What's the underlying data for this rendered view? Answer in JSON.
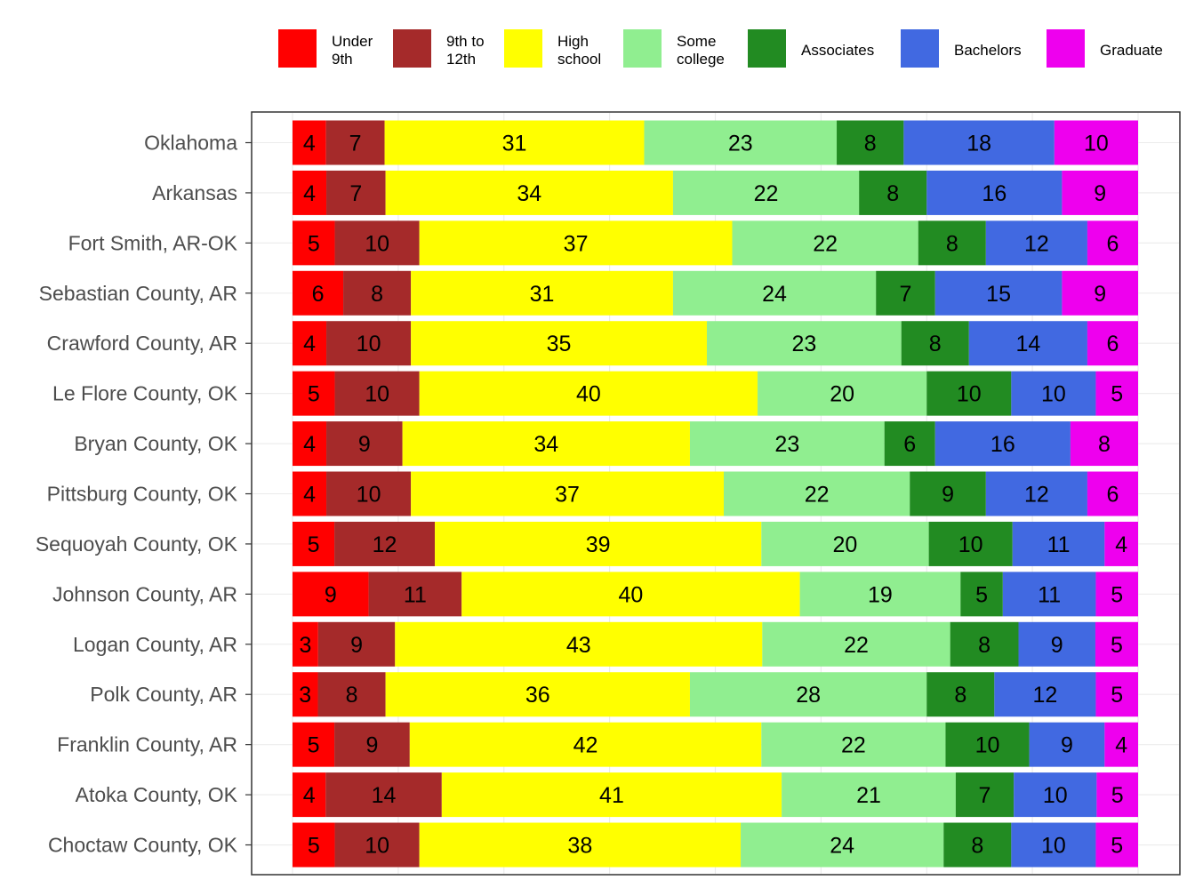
{
  "chart_data": {
    "type": "bar",
    "orientation": "horizontal",
    "stacked": true,
    "xlim": [
      0,
      100
    ],
    "grid": true,
    "legend_position": "top",
    "categories": [
      "Oklahoma",
      "Arkansas",
      "Fort Smith, AR-OK",
      "Sebastian County, AR",
      "Crawford County, AR",
      "Le Flore County, OK",
      "Bryan County, OK",
      "Pittsburg County, OK",
      "Sequoyah County, OK",
      "Johnson County, AR",
      "Logan County, AR",
      "Polk County, AR",
      "Franklin County, AR",
      "Atoka County, OK",
      "Choctaw County, OK"
    ],
    "series": [
      {
        "name": "Under\n9th",
        "color": "#ff0000",
        "values": [
          4,
          4,
          5,
          6,
          4,
          5,
          4,
          4,
          5,
          9,
          3,
          3,
          5,
          4,
          5
        ]
      },
      {
        "name": "9th to\n12th",
        "color": "#a52a2a",
        "values": [
          7,
          7,
          10,
          8,
          10,
          10,
          9,
          10,
          12,
          11,
          9,
          8,
          9,
          14,
          10
        ]
      },
      {
        "name": "High\nschool",
        "color": "#ffff00",
        "values": [
          31,
          34,
          37,
          31,
          35,
          40,
          34,
          37,
          39,
          40,
          43,
          36,
          42,
          41,
          38
        ]
      },
      {
        "name": "Some\ncollege",
        "color": "#90ee90",
        "values": [
          23,
          22,
          22,
          24,
          23,
          20,
          23,
          22,
          20,
          19,
          22,
          28,
          22,
          21,
          24
        ]
      },
      {
        "name": "Associates",
        "color": "#228b22",
        "values": [
          8,
          8,
          8,
          7,
          8,
          10,
          6,
          9,
          10,
          5,
          8,
          8,
          10,
          7,
          8
        ]
      },
      {
        "name": "Bachelors",
        "color": "#4169e1",
        "values": [
          18,
          16,
          12,
          15,
          14,
          10,
          16,
          12,
          11,
          11,
          9,
          12,
          9,
          10,
          10
        ]
      },
      {
        "name": "Graduate",
        "color": "#ee00ee",
        "values": [
          10,
          9,
          6,
          9,
          6,
          5,
          8,
          6,
          4,
          5,
          5,
          5,
          4,
          5,
          5
        ]
      }
    ]
  }
}
